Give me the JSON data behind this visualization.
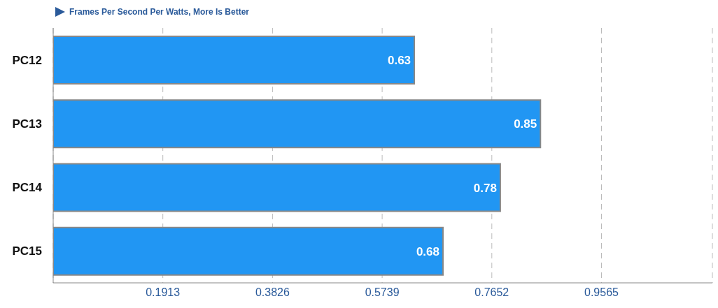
{
  "chart_data": {
    "type": "bar",
    "orientation": "horizontal",
    "subtitle": "Frames Per Second Per Watts, More Is Better",
    "categories": [
      "PC12",
      "PC13",
      "PC14",
      "PC15"
    ],
    "values": [
      0.63,
      0.85,
      0.78,
      0.68
    ],
    "color": "#2196f3",
    "xlim": [
      0,
      1.15
    ],
    "xticks": [
      0.1913,
      0.3826,
      0.5739,
      0.7652,
      0.9565
    ],
    "grid": "x",
    "data_labels": true
  }
}
